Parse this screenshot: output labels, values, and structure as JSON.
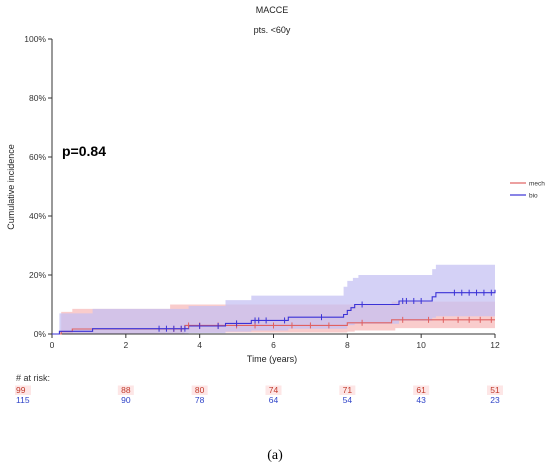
{
  "chart_data": {
    "type": "line",
    "title": "MACCE",
    "subtitle": "pts. <60y",
    "xlabel": "Time (years)",
    "ylabel": "Cumulative incidence",
    "xlim": [
      0,
      12
    ],
    "ylim": [
      0,
      1
    ],
    "x_ticks": [
      "0",
      "2",
      "4",
      "6",
      "8",
      "10",
      "12"
    ],
    "y_ticks": [
      "0%",
      "20%",
      "40%",
      "60%",
      "80%",
      "100%"
    ],
    "annotation": "p=0.84",
    "legend_position": "right",
    "series": [
      {
        "name": "mech",
        "color": "#e06060",
        "band_color": "#f6b8b8",
        "steps": [
          [
            0,
            0
          ],
          [
            0.25,
            0.008
          ],
          [
            0.55,
            0.017
          ],
          [
            1.1,
            0.017
          ],
          [
            3.6,
            0.029
          ],
          [
            8.0,
            0.038
          ],
          [
            9.2,
            0.048
          ],
          [
            12.0,
            0.048
          ]
        ],
        "ci_upper": [
          [
            0,
            0
          ],
          [
            0.25,
            0.075
          ],
          [
            0.55,
            0.085
          ],
          [
            3.2,
            0.1
          ],
          [
            3.7,
            0.1
          ],
          [
            9.2,
            0.11
          ],
          [
            12.0,
            0.11
          ]
        ],
        "ci_lower": [
          [
            0,
            0
          ],
          [
            3.6,
            0.005
          ],
          [
            8.0,
            0.008
          ],
          [
            8.2,
            0.012
          ],
          [
            9.3,
            0.02
          ],
          [
            12.0,
            0.02
          ]
        ],
        "censor_times": [
          3.3,
          3.5,
          3.7,
          4.0,
          4.5,
          5.0,
          5.5,
          6.0,
          6.5,
          7.0,
          7.5,
          8.4,
          9.5,
          10.2,
          10.6,
          11.0,
          11.3,
          11.6,
          11.9
        ]
      },
      {
        "name": "bio",
        "color": "#3b32d6",
        "band_color": "#c3bff3",
        "steps": [
          [
            0,
            0
          ],
          [
            0.2,
            0.009
          ],
          [
            1.1,
            0.018
          ],
          [
            3.7,
            0.027
          ],
          [
            4.7,
            0.036
          ],
          [
            5.4,
            0.046
          ],
          [
            6.4,
            0.057
          ],
          [
            7.9,
            0.066
          ],
          [
            8.0,
            0.08
          ],
          [
            8.1,
            0.089
          ],
          [
            8.2,
            0.1
          ],
          [
            9.4,
            0.112
          ],
          [
            10.3,
            0.126
          ],
          [
            10.4,
            0.14
          ],
          [
            12.0,
            0.15
          ]
        ],
        "ci_upper": [
          [
            0,
            0
          ],
          [
            0.2,
            0.07
          ],
          [
            1.1,
            0.085
          ],
          [
            3.7,
            0.095
          ],
          [
            4.7,
            0.115
          ],
          [
            5.4,
            0.13
          ],
          [
            7.9,
            0.16
          ],
          [
            8.0,
            0.18
          ],
          [
            8.15,
            0.19
          ],
          [
            8.3,
            0.2
          ],
          [
            10.3,
            0.22
          ],
          [
            10.4,
            0.235
          ],
          [
            12.0,
            0.235
          ]
        ],
        "ci_lower": [
          [
            0,
            0
          ],
          [
            3.7,
            0.003
          ],
          [
            4.7,
            0.008
          ],
          [
            5.4,
            0.012
          ],
          [
            6.4,
            0.018
          ],
          [
            8.0,
            0.03
          ],
          [
            8.2,
            0.035
          ],
          [
            9.4,
            0.045
          ],
          [
            10.3,
            0.055
          ],
          [
            10.4,
            0.06
          ],
          [
            12.0,
            0.07
          ]
        ],
        "censor_times": [
          2.9,
          3.1,
          3.3,
          3.5,
          3.6,
          4.0,
          4.5,
          5.0,
          5.5,
          5.6,
          5.8,
          6.3,
          7.3,
          8.4,
          9.5,
          9.6,
          9.8,
          10.0,
          10.9,
          11.1,
          11.3,
          11.5,
          11.7,
          11.9
        ]
      }
    ],
    "risk_table": {
      "title": "# at risk:",
      "times": [
        0,
        2,
        4,
        6,
        8,
        10,
        12
      ],
      "rows": [
        {
          "name": "mech",
          "color": "#c0392b",
          "bg": "#fde6e6",
          "values": [
            "99",
            "88",
            "80",
            "74",
            "71",
            "61",
            "51"
          ]
        },
        {
          "name": "bio",
          "color": "#2e43c8",
          "bg": "#ffffff",
          "values": [
            "115",
            "90",
            "78",
            "64",
            "54",
            "43",
            "23"
          ]
        }
      ]
    }
  },
  "caption": "(a)"
}
